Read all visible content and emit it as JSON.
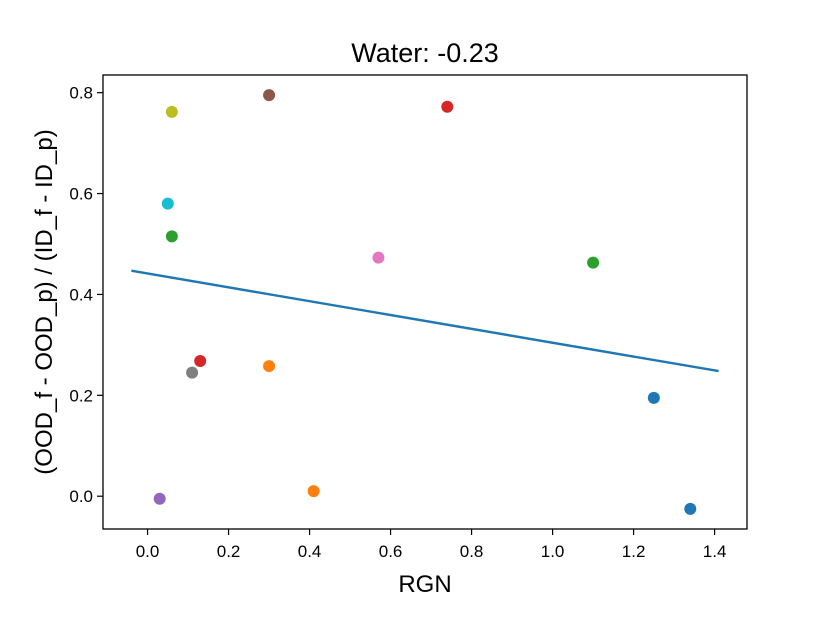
{
  "chart_data": {
    "type": "scatter",
    "title": "Water:  -0.23",
    "xlabel": "RGN",
    "ylabel": "(OOD_f - OOD_p) / (ID_f - ID_p)",
    "xlim": [
      -0.11,
      1.48
    ],
    "ylim": [
      -0.065,
      0.835
    ],
    "xticks": [
      "0.0",
      "0.2",
      "0.4",
      "0.6",
      "0.8",
      "1.0",
      "1.2",
      "1.4"
    ],
    "xtick_values": [
      0.0,
      0.2,
      0.4,
      0.6,
      0.8,
      1.0,
      1.2,
      1.4
    ],
    "yticks": [
      "0.0",
      "0.2",
      "0.4",
      "0.6",
      "0.8"
    ],
    "ytick_values": [
      0.0,
      0.2,
      0.4,
      0.6,
      0.8
    ],
    "points": [
      {
        "x": 1.25,
        "y": 0.195,
        "color": "#1f77b4"
      },
      {
        "x": 1.34,
        "y": -0.025,
        "color": "#1f77b4"
      },
      {
        "x": 0.3,
        "y": 0.258,
        "color": "#ff7f0e"
      },
      {
        "x": 0.41,
        "y": 0.01,
        "color": "#ff7f0e"
      },
      {
        "x": 0.06,
        "y": 0.515,
        "color": "#2ca02c"
      },
      {
        "x": 1.1,
        "y": 0.463,
        "color": "#2ca02c"
      },
      {
        "x": 0.13,
        "y": 0.268,
        "color": "#d62728"
      },
      {
        "x": 0.74,
        "y": 0.772,
        "color": "#d62728"
      },
      {
        "x": 0.03,
        "y": -0.005,
        "color": "#9467bd"
      },
      {
        "x": 0.3,
        "y": 0.795,
        "color": "#8c564b"
      },
      {
        "x": 0.57,
        "y": 0.473,
        "color": "#e377c2"
      },
      {
        "x": 0.11,
        "y": 0.245,
        "color": "#7f7f7f"
      },
      {
        "x": 0.06,
        "y": 0.762,
        "color": "#bcbd22"
      },
      {
        "x": 0.05,
        "y": 0.58,
        "color": "#17becf"
      }
    ],
    "fit_line": {
      "x": [
        -0.04,
        1.41
      ],
      "y": [
        0.447,
        0.248
      ],
      "color": "#1f77b4"
    }
  }
}
